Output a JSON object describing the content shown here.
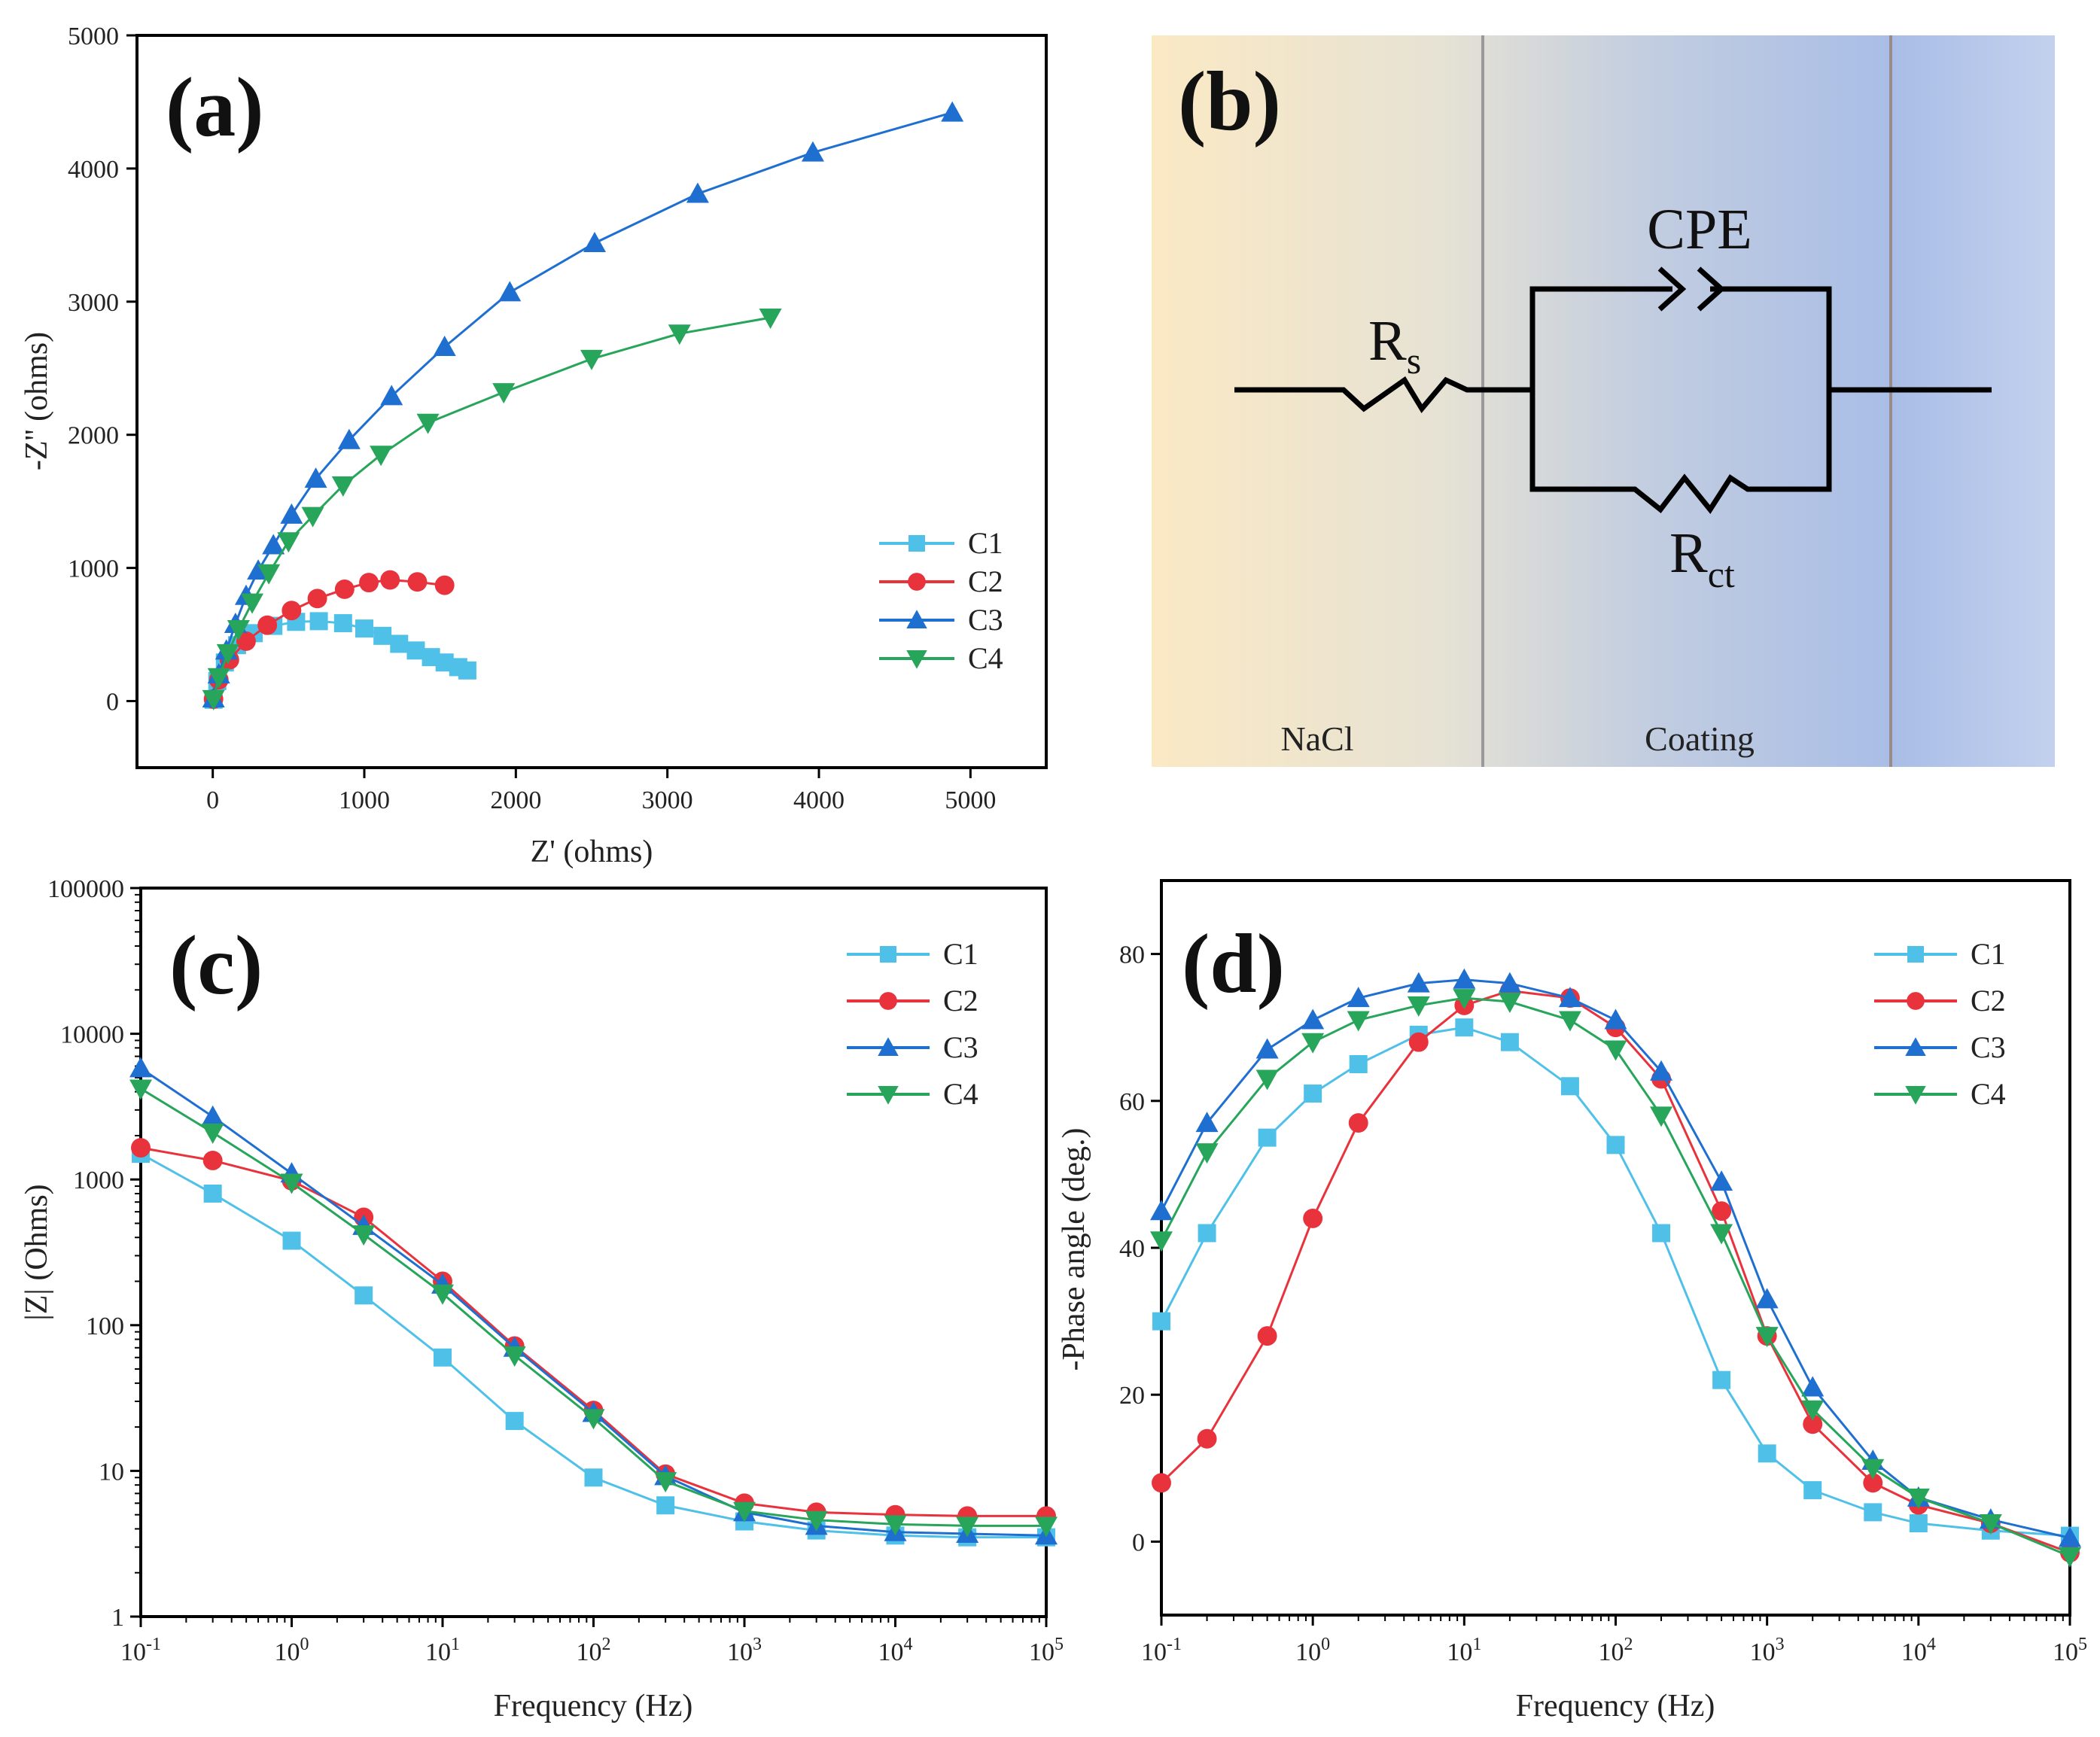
{
  "chart_data": [
    {
      "panel": "(a)",
      "type": "scatter",
      "xlabel": "Z' (ohms)",
      "ylabel": "-Z'' (ohms)",
      "xlim": [
        -500,
        5500
      ],
      "ylim": [
        -500,
        5000
      ],
      "xticks": [
        0,
        1000,
        2000,
        3000,
        4000,
        5000
      ],
      "yticks": [
        0,
        1000,
        2000,
        3000,
        4000,
        5000
      ],
      "legend_position": "lower-right",
      "series": [
        {
          "name": "C1",
          "color": "#4fc1e9",
          "marker": "square",
          "points": [
            [
              5,
              10
            ],
            [
              30,
              150
            ],
            [
              80,
              290
            ],
            [
              160,
              420
            ],
            [
              270,
              510
            ],
            [
              400,
              565
            ],
            [
              550,
              595
            ],
            [
              700,
              600
            ],
            [
              860,
              585
            ],
            [
              1000,
              545
            ],
            [
              1120,
              490
            ],
            [
              1230,
              430
            ],
            [
              1340,
              380
            ],
            [
              1440,
              330
            ],
            [
              1530,
              290
            ],
            [
              1620,
              255
            ],
            [
              1680,
              230
            ]
          ]
        },
        {
          "name": "C2",
          "color": "#e8323c",
          "marker": "circle",
          "points": [
            [
              5,
              15
            ],
            [
              40,
              160
            ],
            [
              110,
              310
            ],
            [
              220,
              450
            ],
            [
              360,
              570
            ],
            [
              520,
              680
            ],
            [
              690,
              770
            ],
            [
              870,
              840
            ],
            [
              1030,
              890
            ],
            [
              1170,
              910
            ],
            [
              1350,
              895
            ],
            [
              1530,
              870
            ]
          ]
        },
        {
          "name": "C3",
          "color": "#1f6fd1",
          "marker": "triangle-up",
          "points": [
            [
              5,
              20
            ],
            [
              40,
              200
            ],
            [
              90,
              380
            ],
            [
              150,
              580
            ],
            [
              220,
              790
            ],
            [
              300,
              980
            ],
            [
              400,
              1170
            ],
            [
              520,
              1400
            ],
            [
              680,
              1670
            ],
            [
              900,
              1960
            ],
            [
              1180,
              2290
            ],
            [
              1530,
              2660
            ],
            [
              1960,
              3070
            ],
            [
              2520,
              3440
            ],
            [
              3200,
              3810
            ],
            [
              3960,
              4120
            ],
            [
              4880,
              4420
            ]
          ]
        },
        {
          "name": "C4",
          "color": "#27a55a",
          "marker": "triangle-down",
          "points": [
            [
              5,
              15
            ],
            [
              40,
              180
            ],
            [
              100,
              360
            ],
            [
              170,
              540
            ],
            [
              260,
              740
            ],
            [
              370,
              960
            ],
            [
              500,
              1200
            ],
            [
              660,
              1390
            ],
            [
              860,
              1620
            ],
            [
              1110,
              1850
            ],
            [
              1420,
              2090
            ],
            [
              1920,
              2320
            ],
            [
              2500,
              2570
            ],
            [
              3080,
              2760
            ],
            [
              3680,
              2880
            ]
          ]
        }
      ]
    },
    {
      "panel": "(c)",
      "type": "scatter",
      "xscale": "log",
      "yscale": "log",
      "xlabel": "Frequency (Hz)",
      "ylabel": "|Z| (Ohms)",
      "xlim": [
        0.1,
        100000
      ],
      "ylim": [
        1,
        100000
      ],
      "xtick_labels": [
        "10-1",
        "100",
        "101",
        "102",
        "103",
        "104",
        "105"
      ],
      "ytick_labels": [
        "1",
        "10",
        "100",
        "1000",
        "10000",
        "100000"
      ],
      "legend_position": "top-right",
      "series": [
        {
          "name": "C1",
          "color": "#4fc1e9",
          "marker": "square",
          "x": [
            0.1,
            0.3,
            1,
            3,
            10,
            30,
            100,
            300,
            1000,
            3000,
            10000,
            30000,
            100000
          ],
          "y": [
            1500,
            800,
            380,
            160,
            60,
            22,
            9,
            5.8,
            4.5,
            3.9,
            3.6,
            3.5,
            3.5
          ]
        },
        {
          "name": "C2",
          "color": "#e8323c",
          "marker": "circle",
          "x": [
            0.1,
            0.3,
            1,
            3,
            10,
            30,
            100,
            300,
            1000,
            3000,
            10000,
            30000,
            100000
          ],
          "y": [
            1650,
            1350,
            980,
            550,
            200,
            72,
            26,
            9.5,
            6,
            5.2,
            5,
            4.9,
            4.9
          ]
        },
        {
          "name": "C3",
          "color": "#1f6fd1",
          "marker": "triangle-up",
          "x": [
            0.1,
            0.3,
            1,
            3,
            10,
            30,
            100,
            300,
            1000,
            3000,
            10000,
            30000,
            100000
          ],
          "y": [
            5800,
            2700,
            1100,
            480,
            190,
            70,
            25,
            9.2,
            5.2,
            4.2,
            3.8,
            3.7,
            3.6
          ]
        },
        {
          "name": "C4",
          "color": "#27a55a",
          "marker": "triangle-down",
          "x": [
            0.1,
            0.3,
            1,
            3,
            10,
            30,
            100,
            300,
            1000,
            3000,
            10000,
            30000,
            100000
          ],
          "y": [
            4200,
            2100,
            950,
            420,
            165,
            62,
            23,
            8.5,
            5.3,
            4.6,
            4.3,
            4.2,
            4.2
          ]
        }
      ]
    },
    {
      "panel": "(d)",
      "type": "scatter",
      "xscale": "log",
      "xlabel": "Frequency (Hz)",
      "ylabel": "-Phase angle (deg.)",
      "xlim": [
        0.1,
        100000
      ],
      "ylim": [
        -10,
        90
      ],
      "xtick_labels": [
        "10-1",
        "100",
        "101",
        "102",
        "103",
        "104",
        "105"
      ],
      "yticks": [
        0,
        20,
        40,
        60,
        80
      ],
      "legend_position": "top-right",
      "series": [
        {
          "name": "C1",
          "color": "#4fc1e9",
          "marker": "square",
          "x": [
            0.1,
            0.2,
            0.5,
            1,
            2,
            5,
            10,
            20,
            50,
            100,
            200,
            500,
            1000,
            2000,
            5000,
            10000,
            30000,
            100000
          ],
          "y": [
            30,
            42,
            55,
            61,
            65,
            69,
            70,
            68,
            62,
            54,
            42,
            22,
            12,
            7,
            4,
            2.5,
            1.5,
            0.8
          ]
        },
        {
          "name": "C2",
          "color": "#e8323c",
          "marker": "circle",
          "x": [
            0.1,
            0.2,
            0.5,
            1,
            2,
            5,
            10,
            20,
            50,
            100,
            200,
            500,
            1000,
            2000,
            5000,
            10000,
            30000,
            100000
          ],
          "y": [
            8,
            14,
            28,
            44,
            57,
            68,
            73,
            75,
            74,
            70,
            63,
            45,
            28,
            16,
            8,
            5,
            2.5,
            -1.5
          ]
        },
        {
          "name": "C3",
          "color": "#1f6fd1",
          "marker": "triangle-up",
          "x": [
            0.1,
            0.2,
            0.5,
            1,
            2,
            5,
            10,
            20,
            50,
            100,
            200,
            500,
            1000,
            2000,
            5000,
            10000,
            30000,
            100000
          ],
          "y": [
            45,
            57,
            67,
            71,
            74,
            76,
            76.5,
            76,
            74,
            71,
            64,
            49,
            33,
            21,
            11,
            6,
            3,
            0.5
          ]
        },
        {
          "name": "C4",
          "color": "#27a55a",
          "marker": "triangle-down",
          "x": [
            0.1,
            0.2,
            0.5,
            1,
            2,
            5,
            10,
            20,
            50,
            100,
            200,
            500,
            1000,
            2000,
            5000,
            10000,
            30000,
            100000
          ],
          "y": [
            41,
            53,
            63,
            68,
            71,
            73,
            74,
            73.5,
            71,
            67,
            58,
            42,
            28,
            18,
            10,
            6,
            2.5,
            -2
          ]
        }
      ]
    }
  ],
  "diagram_b": {
    "panel": "(b)",
    "labels": {
      "cpe": "CPE",
      "rs_main": "R",
      "rs_sub": "s",
      "rct_main": "R",
      "rct_sub": "ct"
    },
    "regions": [
      "NaCl",
      "Coating"
    ]
  }
}
